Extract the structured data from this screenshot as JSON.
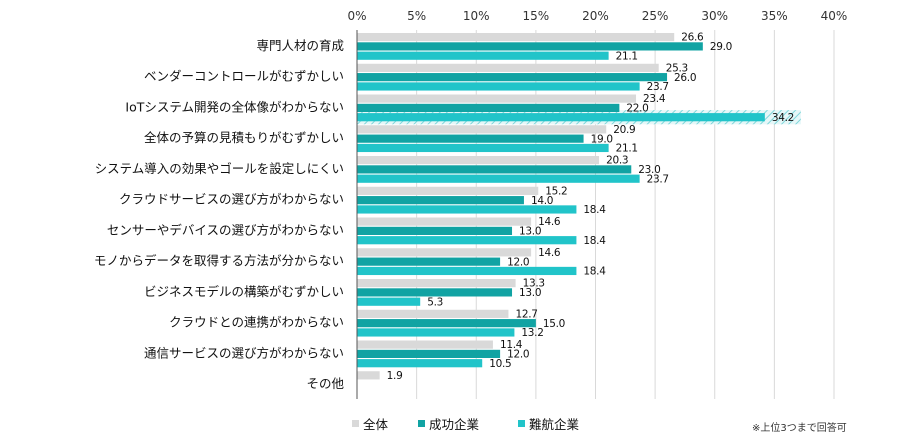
{
  "chart_data": {
    "type": "bar",
    "orientation": "horizontal",
    "x_ticks": [
      "0%",
      "5%",
      "10%",
      "15%",
      "20%",
      "25%",
      "30%",
      "35%",
      "40%"
    ],
    "xlim": [
      0,
      40
    ],
    "grid": true,
    "categories": [
      "専門人材の育成",
      "ベンダーコントロールがむずかしい",
      "IoTシステム開発の全体像がわからない",
      "全体の予算の見積もりがむずかしい",
      "システム導入の効果やゴールを設定しにくい",
      "クラウドサービスの選び方がわからない",
      "センサーやデバイスの選び方がわからない",
      "モノからデータを取得する方法が分からない",
      "ビジネスモデルの構築がむずかしい",
      "クラウドとの連携がわからない",
      "通信サービスの選び方がわからない",
      "その他"
    ],
    "series": [
      {
        "name": "全体",
        "color": "#d9d9d9",
        "values": [
          26.6,
          25.3,
          23.4,
          20.9,
          20.3,
          15.2,
          14.6,
          14.6,
          13.3,
          12.7,
          11.4,
          1.9
        ]
      },
      {
        "name": "成功企業",
        "color": "#11a3a3",
        "values": [
          29.0,
          26.0,
          22.0,
          19.0,
          23.0,
          14.0,
          13.0,
          12.0,
          13.0,
          15.0,
          12.0,
          null
        ]
      },
      {
        "name": "難航企業",
        "color": "#21c4c9",
        "values": [
          21.1,
          23.7,
          34.2,
          21.1,
          23.7,
          18.4,
          18.4,
          18.4,
          5.3,
          13.2,
          10.5,
          null
        ]
      }
    ],
    "value_labels": [
      [
        "26.6",
        "29.0",
        "21.1"
      ],
      [
        "25.3",
        "26.0",
        "23.7"
      ],
      [
        "23.4",
        "22.0",
        "34.2"
      ],
      [
        "20.9",
        "19.0",
        "21.1"
      ],
      [
        "20.3",
        "23.0",
        "23.7"
      ],
      [
        "15.2",
        "14.0",
        "18.4"
      ],
      [
        "14.6",
        "13.0",
        "18.4"
      ],
      [
        "14.6",
        "12.0",
        "18.4"
      ],
      [
        "13.3",
        "13.0",
        "5.3"
      ],
      [
        "12.7",
        "15.0",
        "13.2"
      ],
      [
        "11.4",
        "12.0",
        "10.5"
      ],
      [
        "1.9",
        null,
        null
      ]
    ],
    "highlight": {
      "category_index": 2,
      "series_index": 2
    },
    "legend_position": "bottom",
    "footnote": "※上位3つまで回答可"
  }
}
